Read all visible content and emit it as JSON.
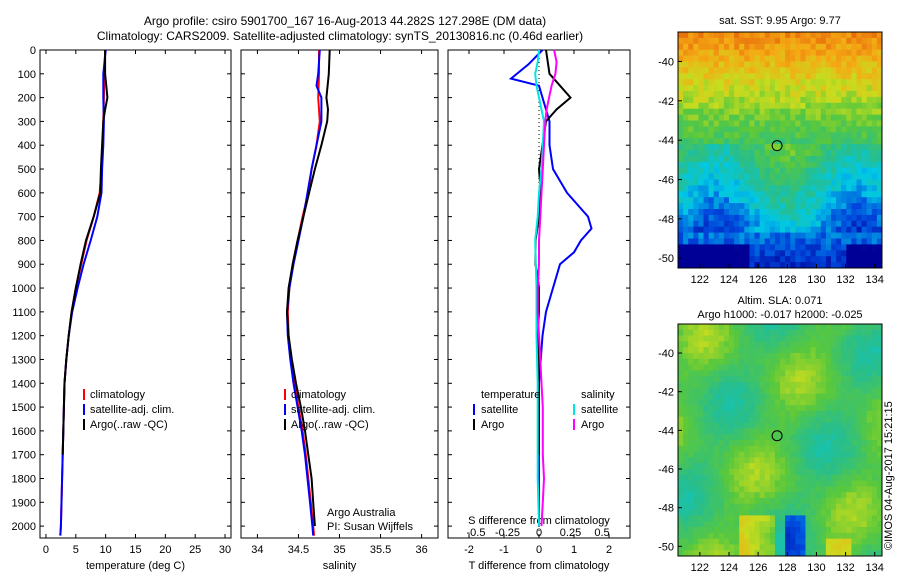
{
  "header": {
    "line1": "Argo profile: csiro 5901700_167 16-Aug-2013 44.282S 127.298E (DM data)",
    "line2": "Climatology: CARS2009. Satellite-adjusted climatology: synTS_20130816.nc (0.46d earlier)"
  },
  "colors": {
    "climatology": "#ff0000",
    "satellite": "#0000ff",
    "argo": "#000000",
    "sat_salinity": "#00e5e5",
    "argo_salinity": "#ff00ff"
  },
  "chart_data": [
    {
      "type": "line",
      "xlabel": "temperature (deg C)",
      "ylabel": "",
      "xlim": [
        -1,
        31
      ],
      "ylim": [
        2050,
        0
      ],
      "xticks": [
        0,
        5,
        10,
        15,
        20,
        25,
        30
      ],
      "yticks": [
        0,
        100,
        200,
        300,
        400,
        500,
        600,
        700,
        800,
        900,
        1000,
        1100,
        1200,
        1300,
        1400,
        1500,
        1600,
        1700,
        1800,
        1900,
        2000
      ],
      "legend": {
        "position": "lower-center",
        "entries": [
          "climatology",
          "satellite-adj. clim.",
          "Argo(..raw -QC)"
        ]
      },
      "series": [
        {
          "name": "climatology",
          "color": "#ff0000",
          "depth": [
            0,
            100,
            200,
            300,
            400,
            500,
            600,
            700,
            800,
            900,
            1000,
            1100,
            1200,
            1300,
            1400,
            1600,
            1800,
            2000,
            2040
          ],
          "values": [
            9.9,
            9.8,
            9.7,
            9.6,
            9.5,
            9.3,
            9.0,
            8.0,
            6.8,
            5.9,
            5.0,
            4.3,
            3.8,
            3.4,
            3.1,
            2.9,
            2.7,
            2.5,
            2.4
          ]
        },
        {
          "name": "satellite-adj. clim.",
          "color": "#0000ff",
          "depth": [
            0,
            100,
            200,
            300,
            400,
            500,
            600,
            700,
            800,
            900,
            1000,
            1100,
            1200,
            1300,
            1400,
            1600,
            1800,
            2000,
            2040
          ],
          "values": [
            10.0,
            9.6,
            9.6,
            9.7,
            9.6,
            9.4,
            9.3,
            8.6,
            7.5,
            6.3,
            5.3,
            4.4,
            3.8,
            3.4,
            3.1,
            2.9,
            2.7,
            2.5,
            2.4
          ]
        },
        {
          "name": "Argo(..raw -QC)",
          "color": "#000000",
          "depth": [
            0,
            100,
            150,
            200,
            250,
            300,
            400,
            500,
            600,
            700,
            800,
            900,
            1000,
            1100,
            1200,
            1300,
            1400,
            1600,
            1700
          ],
          "values": [
            9.9,
            9.9,
            10.1,
            10.3,
            9.9,
            9.6,
            9.4,
            9.2,
            9.1,
            8.0,
            6.7,
            5.8,
            5.0,
            4.3,
            3.8,
            3.4,
            3.1,
            2.9,
            2.8
          ]
        }
      ]
    },
    {
      "type": "line",
      "xlabel": "salinity",
      "ylabel": "",
      "xlim": [
        33.8,
        36.2
      ],
      "ylim": [
        2050,
        0
      ],
      "xticks": [
        34,
        34.5,
        35,
        35.5,
        36
      ],
      "legend": {
        "position": "lower-center",
        "entries": [
          "climatology",
          "satellite-adj. clim.",
          "Argo(..raw -QC)"
        ]
      },
      "annotation": [
        "Argo Australia",
        "PI: Susan Wijffels"
      ],
      "series": [
        {
          "name": "climatology",
          "color": "#ff0000",
          "depth": [
            0,
            100,
            200,
            300,
            400,
            500,
            600,
            700,
            800,
            900,
            1000,
            1100,
            1200,
            1300,
            1400,
            1500,
            1600,
            1700,
            1800,
            1900,
            2000,
            2040
          ],
          "values": [
            34.75,
            34.75,
            34.74,
            34.76,
            34.72,
            34.66,
            34.62,
            34.55,
            34.49,
            34.43,
            34.39,
            34.37,
            34.38,
            34.41,
            34.45,
            34.5,
            34.55,
            34.59,
            34.62,
            34.65,
            34.68,
            34.69
          ]
        },
        {
          "name": "satellite-adj. clim.",
          "color": "#0000ff",
          "depth": [
            0,
            100,
            150,
            200,
            300,
            400,
            500,
            600,
            700,
            800,
            900,
            1000,
            1100,
            1200,
            1300,
            1400,
            1500,
            1600,
            1700,
            1800,
            1900,
            2000,
            2040
          ],
          "values": [
            34.76,
            34.74,
            34.72,
            34.78,
            34.78,
            34.72,
            34.66,
            34.61,
            34.56,
            34.5,
            34.44,
            34.39,
            34.36,
            34.37,
            34.4,
            34.44,
            34.49,
            34.54,
            34.58,
            34.61,
            34.64,
            34.67,
            34.68
          ]
        },
        {
          "name": "Argo(..raw -QC)",
          "color": "#000000",
          "depth": [
            0,
            100,
            200,
            250,
            300,
            400,
            500,
            600,
            700,
            800,
            900,
            1000,
            1100,
            1200,
            1300,
            1400,
            1500,
            1600,
            1700,
            1800,
            1900,
            2000
          ],
          "values": [
            34.88,
            34.87,
            34.84,
            34.86,
            34.85,
            34.78,
            34.7,
            34.63,
            34.56,
            34.49,
            34.43,
            34.38,
            34.36,
            34.38,
            34.42,
            34.47,
            34.53,
            34.58,
            34.62,
            34.66,
            34.68,
            34.7
          ]
        }
      ]
    },
    {
      "type": "line",
      "xlabel": "T difference from climatology",
      "xlabel2": "S difference from climatology",
      "ylabel": "",
      "xlim": [
        -2.6,
        2.6
      ],
      "ylim": [
        2050,
        0
      ],
      "xticks": [
        -2,
        -1,
        0,
        1,
        2
      ],
      "xticks2": [
        "-0.5",
        "-0.25",
        "0",
        "0.25",
        "0.5"
      ],
      "legend": {
        "position": "lower-center",
        "titles": [
          "temperature",
          "salinity"
        ],
        "entries": [
          "satellite",
          "Argo",
          "satellite",
          "Argo"
        ]
      },
      "series": [
        {
          "name": "temperature satellite",
          "color": "#0000ff",
          "depth": [
            0,
            60,
            120,
            150,
            200,
            300,
            400,
            500,
            600,
            700,
            750,
            800,
            850,
            900,
            1000,
            1100,
            1200,
            1400,
            1600,
            1800,
            2000
          ],
          "values": [
            0.1,
            -0.3,
            -0.8,
            0.0,
            0.1,
            0.3,
            0.3,
            0.4,
            0.8,
            1.4,
            1.5,
            1.2,
            1.0,
            0.6,
            0.4,
            0.2,
            0.1,
            0.0,
            0.0,
            0.0,
            0.0
          ]
        },
        {
          "name": "temperature Argo",
          "color": "#000000",
          "depth": [
            0,
            100,
            150,
            200,
            250,
            300,
            400,
            500,
            600,
            700,
            800,
            900,
            1000,
            1100,
            1200,
            1300,
            1400,
            1600,
            1700
          ],
          "values": [
            0.2,
            0.3,
            0.6,
            0.9,
            0.5,
            0.2,
            0.1,
            0.0,
            0.05,
            0.0,
            -0.1,
            -0.1,
            0.0,
            0.0,
            -0.05,
            0.0,
            0.0,
            0.0,
            0.0
          ]
        },
        {
          "name": "salinity satellite",
          "color": "#00e5e5",
          "depth": [
            0,
            50,
            100,
            150,
            200,
            300,
            400,
            500,
            600,
            700,
            800,
            1000,
            1200,
            1400,
            1600,
            1800,
            2000
          ],
          "values": [
            0.0,
            -0.01,
            -0.03,
            -0.02,
            0.0,
            0.04,
            0.03,
            0.02,
            0.0,
            -0.01,
            -0.03,
            -0.02,
            -0.02,
            -0.01,
            -0.01,
            -0.01,
            0.0
          ]
        },
        {
          "name": "salinity Argo",
          "color": "#ff00ff",
          "depth": [
            0,
            50,
            100,
            150,
            200,
            250,
            300,
            400,
            500,
            600,
            700,
            800,
            900,
            1000,
            1100,
            1200,
            1300,
            1400,
            1500,
            1600,
            1700,
            1800,
            1900,
            2000
          ],
          "values": [
            0.12,
            0.14,
            0.13,
            0.1,
            0.08,
            0.06,
            0.05,
            0.04,
            0.03,
            0.02,
            0.01,
            0.0,
            0.0,
            -0.01,
            -0.01,
            0.0,
            0.01,
            0.02,
            0.03,
            0.03,
            0.03,
            0.04,
            0.03,
            0.02
          ]
        }
      ]
    },
    {
      "type": "heatmap",
      "title": "sat. SST: 9.95 Argo: 9.77",
      "xticks": [
        "122",
        "124",
        "126",
        "128",
        "130",
        "132",
        "134"
      ],
      "yticks": [
        "-40",
        "-42",
        "-44",
        "-46",
        "-48",
        "-50"
      ],
      "xlim": [
        120.5,
        134.5
      ],
      "ylim": [
        -50.5,
        -38.5
      ],
      "marker": {
        "lon": 127.3,
        "lat": -44.28
      }
    },
    {
      "type": "heatmap",
      "title": "Altim. SLA: 0.071",
      "subtitle": "Argo h1000: -0.017 h2000: -0.025",
      "xticks": [
        "122",
        "124",
        "126",
        "128",
        "130",
        "132",
        "134"
      ],
      "yticks": [
        "-40",
        "-42",
        "-44",
        "-46",
        "-48",
        "-50"
      ],
      "xlim": [
        120.5,
        134.5
      ],
      "ylim": [
        -50.5,
        -38.5
      ],
      "marker": {
        "lon": 127.3,
        "lat": -44.28
      }
    }
  ],
  "stamp": "©IMOS 04-Aug-2017 15:21:15"
}
